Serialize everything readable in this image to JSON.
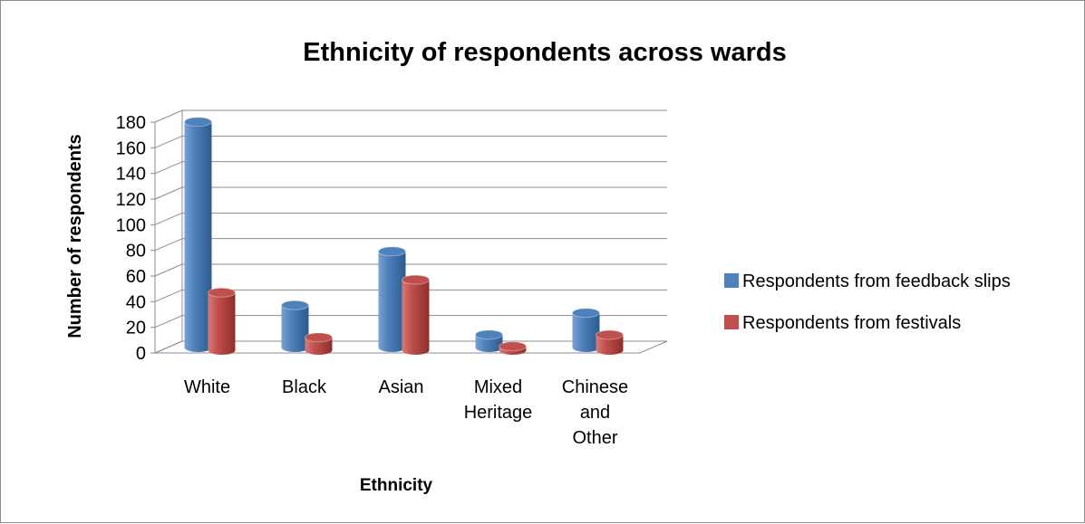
{
  "chart_data": {
    "type": "bar",
    "title": "Ethnicity of respondents across wards",
    "xlabel": "Ethnicity",
    "ylabel": "Number of respondents",
    "ylim": [
      0,
      180
    ],
    "y_ticks": [
      "0",
      "20",
      "40",
      "60",
      "80",
      "100",
      "120",
      "140",
      "160",
      "180"
    ],
    "categories": [
      [
        "White"
      ],
      [
        "Black"
      ],
      [
        "Asian"
      ],
      [
        "Mixed",
        "Heritage"
      ],
      [
        "Chinese",
        "and",
        "Other"
      ]
    ],
    "series": [
      {
        "name": "Respondents from feedback slips",
        "values": [
          176,
          33,
          75,
          10,
          27
        ],
        "color": "#4f81bd"
      },
      {
        "name": "Respondents from festivals",
        "values": [
          45,
          10,
          55,
          3,
          12
        ],
        "color": "#c0504d"
      }
    ],
    "grid": true,
    "legend_position": "right",
    "style": "3d-cylinder"
  }
}
